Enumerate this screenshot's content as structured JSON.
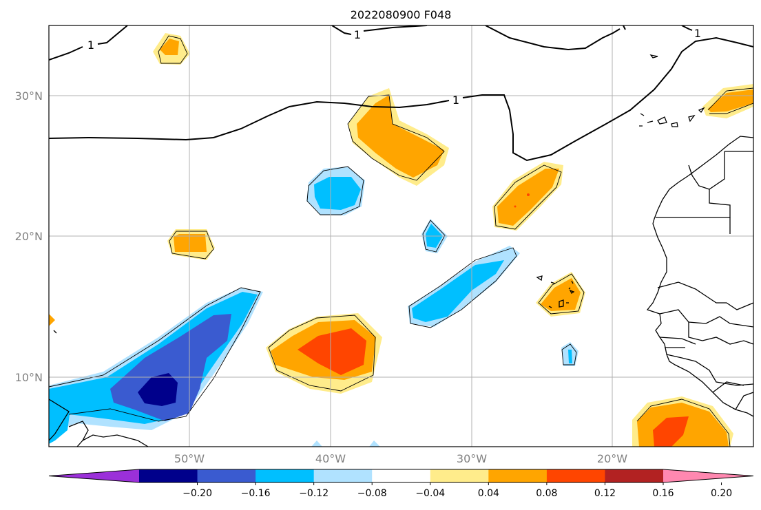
{
  "title": "2022080900 F048",
  "lat_labels": [
    "30°N",
    "20°N",
    "10°N"
  ],
  "lon_labels": [
    "50°W",
    "40°W",
    "30°W",
    "20°W"
  ],
  "contour_labels": [
    "1",
    "1",
    "1",
    "1"
  ],
  "colorbar": {
    "colors": [
      "#9b30d9",
      "#00008b",
      "#3a5bd0",
      "#00bfff",
      "#b0e2ff",
      "#ffffff",
      "#ffec8b",
      "#ffa500",
      "#ff4500",
      "#b22222",
      "#ff88b0"
    ],
    "tick_labels": [
      "−0.20",
      "−0.16",
      "−0.12",
      "−0.08",
      "−0.04",
      "0.04",
      "0.08",
      "0.12",
      "0.16",
      "0.20"
    ]
  },
  "colors": {
    "axis": "#000000",
    "grid": "#b0b0b0",
    "tick_label": "#808080"
  }
}
